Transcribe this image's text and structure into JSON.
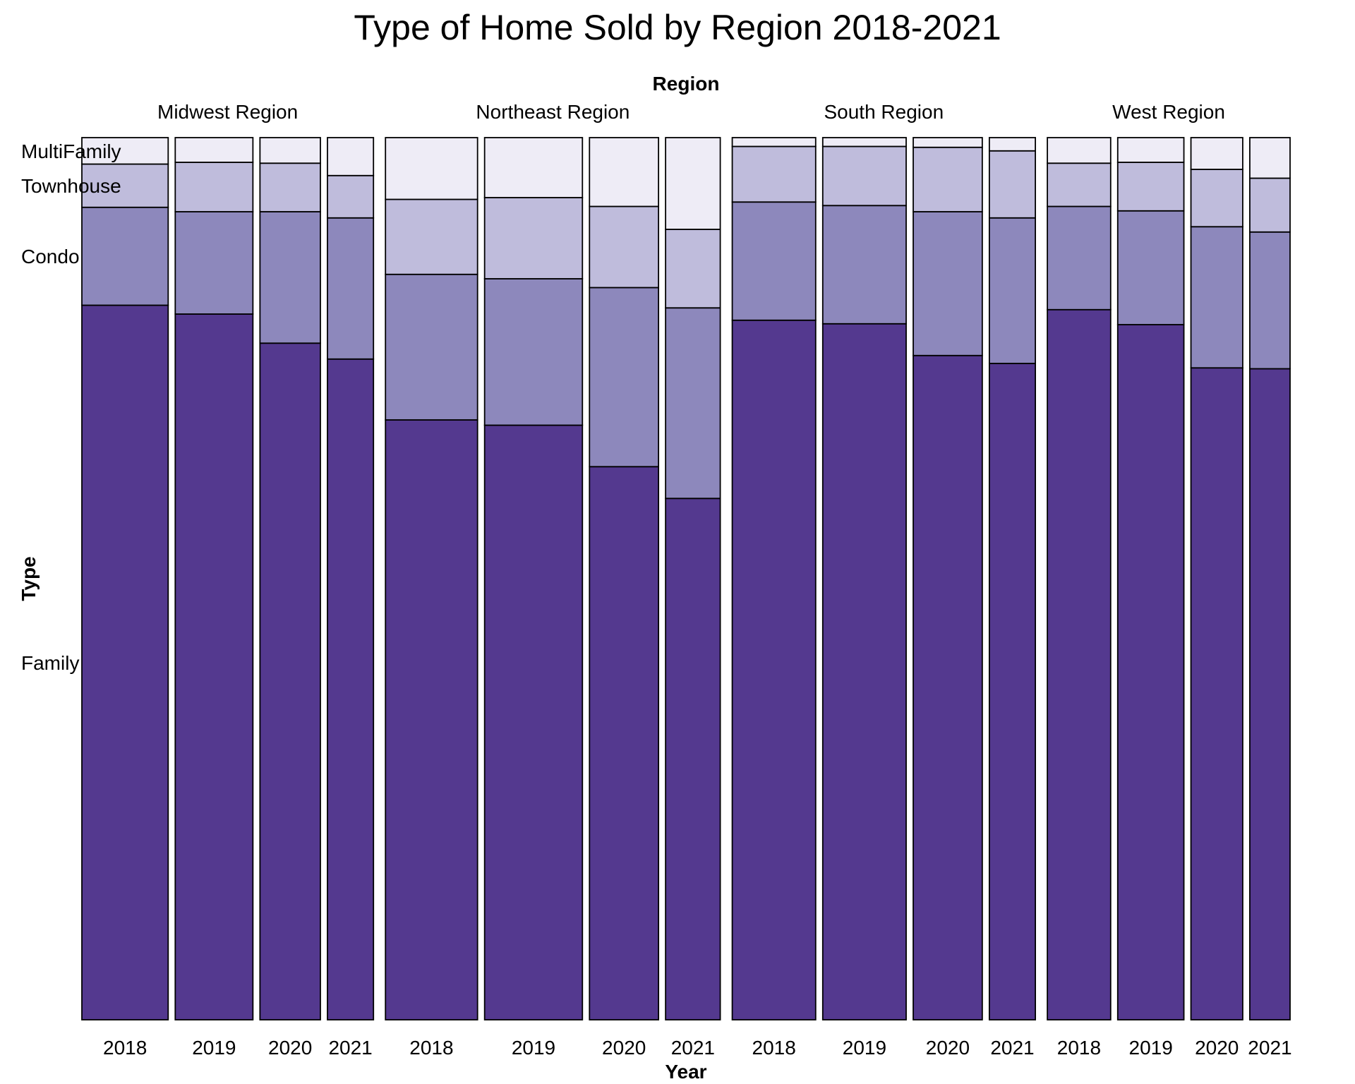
{
  "chart_data": {
    "type": "mosaic",
    "title": "Type of Home Sold by Region 2018-2021",
    "xlabel": "Year",
    "ylabel": "Type",
    "facet_label": "Region",
    "types": [
      "Family",
      "Condo",
      "Townhouse",
      "MultiFamily"
    ],
    "colors": [
      "#54398f",
      "#8d88bc",
      "#bfbcdc",
      "#eeecf6"
    ],
    "regions": [
      {
        "name": "Midwest Region",
        "years": [
          {
            "year": "2018",
            "share": 0.3,
            "values": [
              0.81,
              0.111,
              0.049,
              0.03
            ]
          },
          {
            "year": "2019",
            "share": 0.27,
            "values": [
              0.8,
              0.116,
              0.056,
              0.028
            ]
          },
          {
            "year": "2020",
            "share": 0.21,
            "values": [
              0.767,
              0.149,
              0.055,
              0.029
            ]
          },
          {
            "year": "2021",
            "share": 0.16,
            "values": [
              0.749,
              0.16,
              0.048,
              0.043
            ]
          }
        ]
      },
      {
        "name": "Northeast Region",
        "years": [
          {
            "year": "2018",
            "share": 0.32,
            "values": [
              0.68,
              0.165,
              0.085,
              0.07
            ]
          },
          {
            "year": "2019",
            "share": 0.34,
            "values": [
              0.674,
              0.166,
              0.092,
              0.068
            ]
          },
          {
            "year": "2020",
            "share": 0.24,
            "values": [
              0.627,
              0.203,
              0.092,
              0.078
            ]
          },
          {
            "year": "2021",
            "share": 0.19,
            "values": [
              0.591,
              0.216,
              0.089,
              0.104
            ]
          }
        ]
      },
      {
        "name": "South Region",
        "years": [
          {
            "year": "2018",
            "share": 0.29,
            "values": [
              0.793,
              0.134,
              0.063,
              0.01
            ]
          },
          {
            "year": "2019",
            "share": 0.29,
            "values": [
              0.789,
              0.134,
              0.067,
              0.01
            ]
          },
          {
            "year": "2020",
            "share": 0.24,
            "values": [
              0.753,
              0.163,
              0.073,
              0.011
            ]
          },
          {
            "year": "2021",
            "share": 0.16,
            "values": [
              0.744,
              0.165,
              0.076,
              0.015
            ]
          }
        ]
      },
      {
        "name": "West Region",
        "years": [
          {
            "year": "2018",
            "share": 0.22,
            "values": [
              0.805,
              0.117,
              0.049,
              0.029
            ]
          },
          {
            "year": "2019",
            "share": 0.23,
            "values": [
              0.788,
              0.129,
              0.055,
              0.028
            ]
          },
          {
            "year": "2020",
            "share": 0.18,
            "values": [
              0.739,
              0.16,
              0.065,
              0.036
            ]
          },
          {
            "year": "2021",
            "share": 0.14,
            "values": [
              0.738,
              0.155,
              0.061,
              0.046
            ]
          }
        ]
      }
    ]
  }
}
